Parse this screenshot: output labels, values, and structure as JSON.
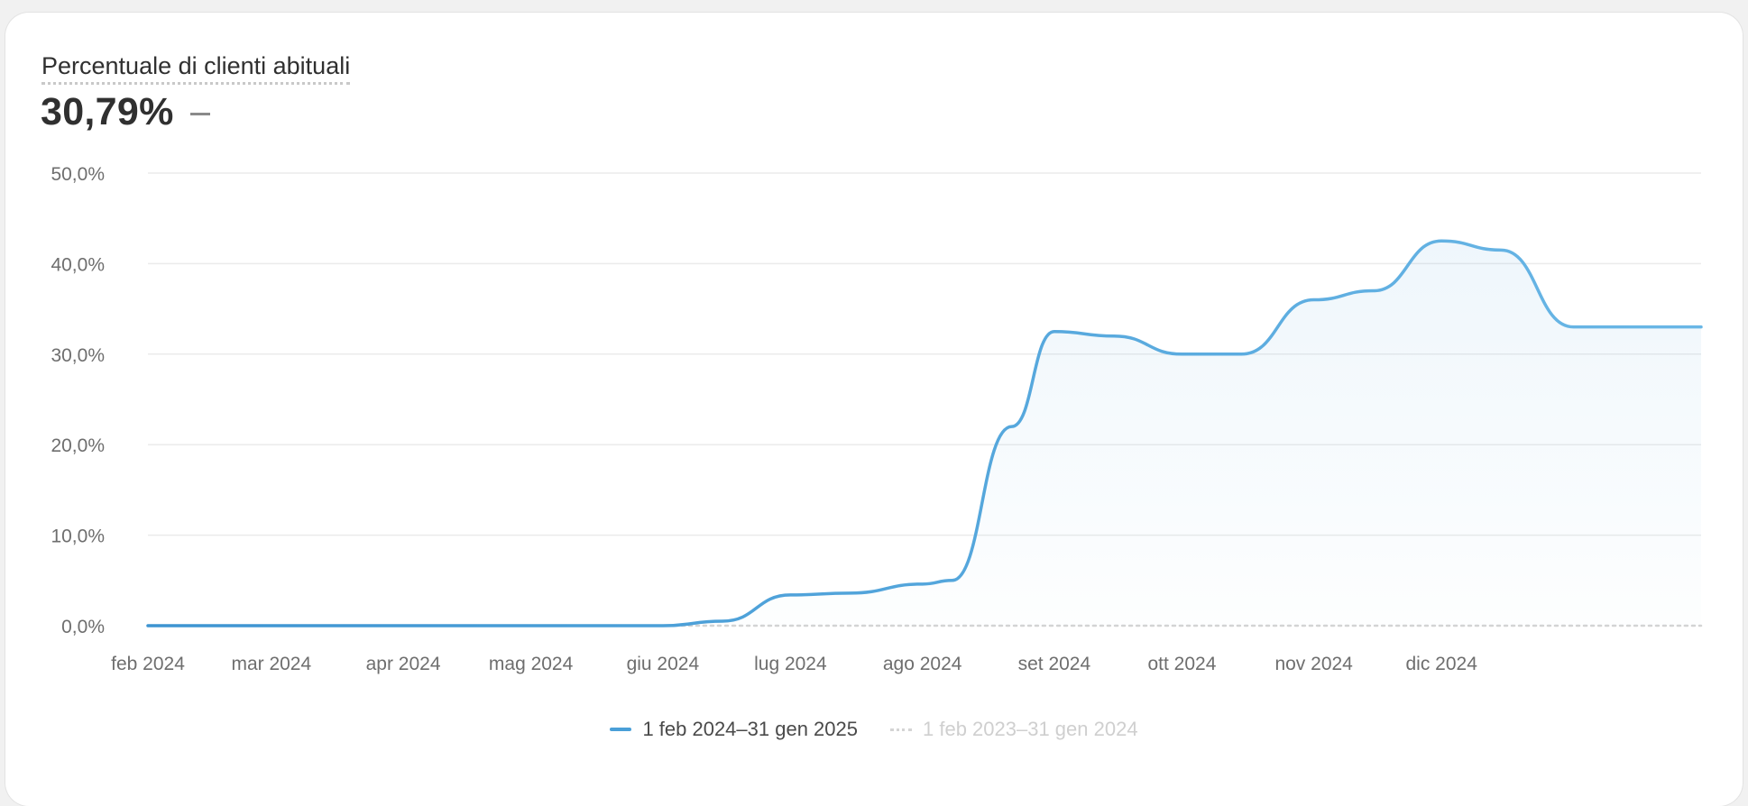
{
  "card": {
    "title": "Percentuale di clienti abituali",
    "value": "30,79%"
  },
  "colors": {
    "primary_line": "#4a9fd8",
    "comparison_line": "#d4d4d4",
    "gridline": "#ebebeb",
    "text": "#303030",
    "axis_text": "#6e6e6e"
  },
  "chart_data": {
    "type": "area",
    "ylim": [
      0,
      50
    ],
    "y_ticks": [
      0,
      10,
      20,
      30,
      40,
      50
    ],
    "y_tick_labels": [
      "0,0%",
      "10,0%",
      "20,0%",
      "30,0%",
      "40,0%",
      "50,0%"
    ],
    "x_tick_labels": [
      "feb 2024",
      "mar 2024",
      "apr 2024",
      "mag 2024",
      "giu 2024",
      "lug 2024",
      "ago 2024",
      "set 2024",
      "ott 2024",
      "nov 2024",
      "dic 2024"
    ],
    "x": [
      "2024-02-01",
      "2024-03-01",
      "2024-04-01",
      "2024-05-01",
      "2024-06-01",
      "2024-06-15",
      "2024-07-01",
      "2024-07-15",
      "2024-08-01",
      "2024-08-08",
      "2024-08-22",
      "2024-09-01",
      "2024-09-15",
      "2024-10-01",
      "2024-10-15",
      "2024-11-01",
      "2024-11-15",
      "2024-12-01",
      "2024-12-15",
      "2025-01-01"
    ],
    "series": [
      {
        "name": "1 feb 2024–31 gen 2025",
        "values": [
          0,
          0,
          0,
          0,
          0,
          0.5,
          3.4,
          3.6,
          4.6,
          5.0,
          22.0,
          32.5,
          32.0,
          30.0,
          30.0,
          36.0,
          37.0,
          42.5,
          41.5,
          33.0
        ]
      },
      {
        "name": "1 feb 2023–31 gen 2024",
        "values": [
          0,
          0,
          0,
          0,
          0,
          0,
          0,
          0,
          0,
          0,
          0,
          0,
          0,
          0,
          0,
          0,
          0,
          0,
          0,
          0
        ]
      }
    ],
    "grid": true,
    "legend_position": "bottom-center"
  }
}
